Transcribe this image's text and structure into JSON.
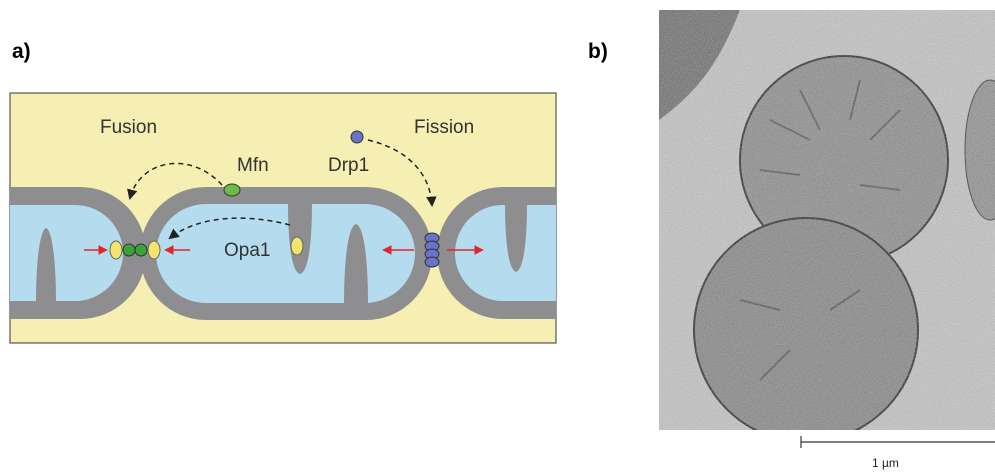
{
  "labels": {
    "panel_a": "a)",
    "panel_b": "b)",
    "fusion": "Fusion",
    "fission": "Fission",
    "mfn": "Mfn",
    "drp1": "Drp1",
    "opa1": "Opa1",
    "scale_bar": "1 µm"
  }
}
